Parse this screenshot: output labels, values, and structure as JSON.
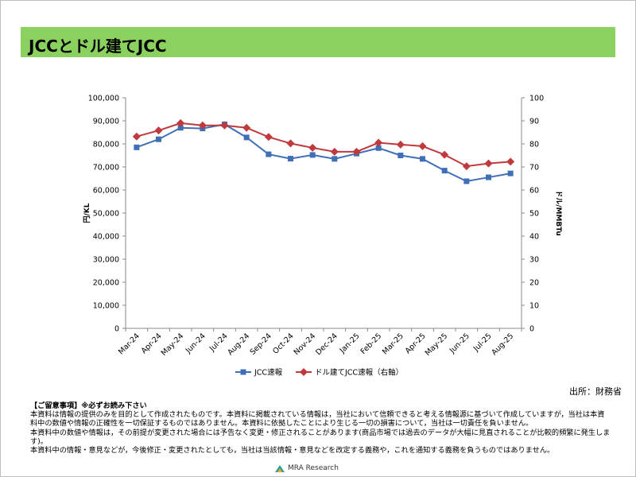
{
  "page": {
    "title": "JCCとドル建てJCC"
  },
  "chart_data": {
    "type": "line",
    "categories": [
      "Mar-24",
      "Apr-24",
      "May-24",
      "Jun-24",
      "Jul-24",
      "Aug-24",
      "Sep-24",
      "Oct-24",
      "Nov-24",
      "Dec-24",
      "Jan-25",
      "Feb-25",
      "Mar-25",
      "Apr-25",
      "May-25",
      "Jun-25",
      "Jul-25",
      "Aug-25"
    ],
    "series": [
      {
        "name": "JCC速報",
        "axis": "left",
        "color": "#3f6fb6",
        "marker": "square",
        "values": [
          78500,
          82000,
          87000,
          86700,
          88500,
          82800,
          75500,
          73600,
          75200,
          73500,
          75800,
          78200,
          75000,
          73500,
          68400,
          63800,
          65500,
          67200
        ]
      },
      {
        "name": "ドル建てJCC速報（右軸）",
        "axis": "right",
        "color": "#c0393c",
        "marker": "diamond",
        "values": [
          83.2,
          85.8,
          89.0,
          88.0,
          88.0,
          87.0,
          83.0,
          80.2,
          78.3,
          76.6,
          76.6,
          80.5,
          79.7,
          79.0,
          75.3,
          70.3,
          71.5,
          72.3
        ]
      }
    ],
    "y_left": {
      "label": "円/KL",
      "min": 0,
      "max": 100000,
      "step": 10000,
      "tick_labels": [
        "0",
        "10,000",
        "20,000",
        "30,000",
        "40,000",
        "50,000",
        "60,000",
        "70,000",
        "80,000",
        "90,000",
        "100,000"
      ]
    },
    "y_right": {
      "label": "ドル/MMBTu",
      "min": 0,
      "max": 100,
      "step": 10,
      "tick_labels": [
        "0",
        "10",
        "20",
        "30",
        "40",
        "50",
        "60",
        "70",
        "80",
        "90",
        "100"
      ]
    },
    "legend_position": "bottom",
    "grid": false
  },
  "source": "出所：財務省",
  "notes": {
    "heading": "【ご留意事項】※必ずお読み下さい",
    "lines": [
      "本資料は情報の提供のみを目的として作成されたものです。本資料に掲載されている情報は，当社において信頼できると考える情報源に基づいて作成していますが，当社は本資料中の数値や情報の正確性を一切保証するものではありません。本資料に依拠したことにより生じる一切の損害について，当社は一切責任を負いません。",
      "本資料中の数値や情報は，その前提が変更された場合には予告なく変更・修正されることがあります(商品市場では過去のデータが大幅に見直されることが比較的頻繁に発生します)。",
      "本資料中の情報・意見などが，今後修正・変更されたとしても，当社は当該情報・意見などを改定する義務や，これを通知する義務を負うものではありません。"
    ]
  },
  "logo": {
    "text": "MRA Research"
  }
}
